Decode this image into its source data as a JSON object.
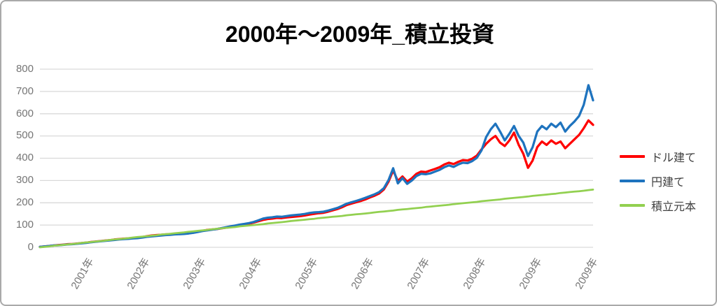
{
  "title": "2000年〜2009年_積立投資",
  "colors": {
    "dollar_line": "#FF0000",
    "yen_line": "#1E73BE",
    "principal_line": "#92D050",
    "grid": "#D9D9D9",
    "axis_text": "#757575",
    "legend_text": "#404040",
    "title_text": "#000000",
    "frame_border": "#A9A9A9"
  },
  "chart_data": {
    "type": "line",
    "title": "2000年〜2009年_積立投資",
    "xlabel": "",
    "ylabel": "",
    "ylim": [
      0,
      800
    ],
    "y_ticks": [
      0,
      100,
      200,
      300,
      400,
      500,
      600,
      700,
      800
    ],
    "x_tick_labels": [
      "2001年",
      "2002年",
      "2003年",
      "2004年",
      "2005年",
      "2006年",
      "2007年",
      "2008年",
      "2009年",
      "2009年"
    ],
    "grid": "horizontal-only",
    "legend_position": "right",
    "series": [
      {
        "name": "ドル建て",
        "color": "#FF0000",
        "values": [
          2,
          4,
          6,
          8,
          10,
          12,
          14,
          15,
          17,
          19,
          21,
          24,
          26,
          28,
          30,
          32,
          35,
          37,
          39,
          40,
          42,
          43,
          46,
          50,
          53,
          55,
          56,
          58,
          59,
          61,
          61,
          62,
          63,
          66,
          70,
          74,
          78,
          80,
          82,
          85,
          88,
          91,
          95,
          99,
          102,
          106,
          111,
          117,
          123,
          127,
          129,
          132,
          131,
          134,
          136,
          138,
          140,
          143,
          147,
          150,
          153,
          155,
          160,
          166,
          172,
          180,
          190,
          196,
          202,
          208,
          215,
          224,
          232,
          242,
          260,
          295,
          345,
          298,
          318,
          295,
          310,
          330,
          340,
          338,
          345,
          352,
          360,
          372,
          380,
          374,
          384,
          392,
          390,
          398,
          412,
          440,
          465,
          485,
          500,
          470,
          455,
          480,
          515,
          460,
          420,
          357,
          390,
          450,
          475,
          460,
          480,
          465,
          475,
          445,
          465,
          485,
          505,
          535,
          570,
          550
        ]
      },
      {
        "name": "円建て",
        "color": "#1E73BE",
        "values": [
          2,
          4,
          6,
          8,
          9,
          11,
          13,
          14,
          16,
          18,
          20,
          23,
          25,
          27,
          29,
          31,
          33,
          35,
          37,
          38,
          40,
          41,
          44,
          47,
          49,
          51,
          53,
          55,
          56,
          58,
          59,
          60,
          62,
          65,
          69,
          73,
          76,
          79,
          82,
          86,
          90,
          94,
          98,
          102,
          105,
          109,
          114,
          121,
          129,
          133,
          135,
          138,
          137,
          140,
          143,
          145,
          147,
          150,
          154,
          157,
          158,
          160,
          165,
          171,
          177,
          186,
          196,
          202,
          208,
          215,
          222,
          230,
          238,
          248,
          266,
          302,
          355,
          287,
          311,
          285,
          300,
          320,
          330,
          328,
          332,
          340,
          348,
          360,
          368,
          361,
          372,
          380,
          378,
          387,
          402,
          435,
          495,
          530,
          555,
          520,
          480,
          510,
          545,
          500,
          470,
          410,
          450,
          520,
          545,
          530,
          555,
          540,
          560,
          520,
          545,
          565,
          590,
          640,
          728,
          660
        ]
      },
      {
        "name": "積立元本",
        "color": "#92D050",
        "values": [
          0,
          2,
          4,
          7,
          9,
          11,
          13,
          15,
          17,
          20,
          22,
          24,
          26,
          28,
          30,
          33,
          35,
          37,
          39,
          41,
          44,
          46,
          48,
          50,
          52,
          54,
          57,
          59,
          61,
          63,
          65,
          67,
          70,
          72,
          74,
          76,
          78,
          81,
          83,
          85,
          87,
          89,
          91,
          94,
          96,
          98,
          100,
          102,
          104,
          107,
          109,
          111,
          113,
          115,
          118,
          120,
          122,
          124,
          126,
          128,
          131,
          133,
          135,
          137,
          139,
          141,
          144,
          146,
          148,
          150,
          152,
          154,
          157,
          159,
          161,
          163,
          165,
          168,
          170,
          172,
          174,
          176,
          178,
          181,
          183,
          185,
          187,
          189,
          191,
          194,
          196,
          198,
          200,
          202,
          204,
          207,
          209,
          211,
          213,
          215,
          218,
          220,
          222,
          224,
          226,
          228,
          231,
          233,
          235,
          237,
          239,
          241,
          244,
          246,
          248,
          250,
          252,
          254,
          257,
          259
        ]
      }
    ]
  }
}
